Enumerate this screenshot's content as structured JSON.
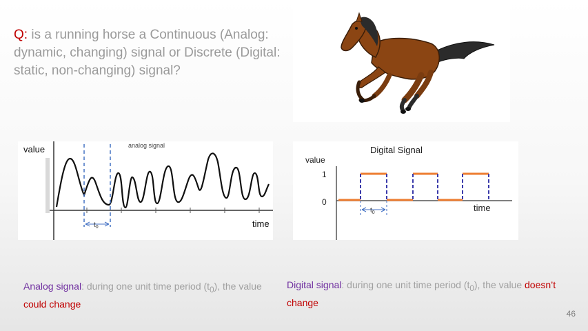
{
  "question": {
    "prefix": "Q:",
    "text": " is a running horse a Continuous (Analog: dynamic, changing) signal or Discrete (Digital: static, non-changing) signal?"
  },
  "analog_figure": {
    "value_label": "value",
    "title": "analog signal",
    "time_label": "time",
    "t0_label": "t",
    "t0_sub": "0"
  },
  "digital_figure": {
    "title": "Digital Signal",
    "value_label": "value",
    "tick_1": "1",
    "tick_0": "0",
    "time_label": "time",
    "t0_label": "t",
    "t0_sub": "0"
  },
  "captions": {
    "analog": {
      "lead": "Analog signal",
      "mid": ": during one unit time period (t",
      "sub": "0",
      "tail": "), the value ",
      "emph": "could change"
    },
    "digital": {
      "lead": "Digital signal",
      "mid": ": during one unit time period (t",
      "sub": "0",
      "tail": "), the value ",
      "emph": "doesn’t change"
    }
  },
  "page_number": "46",
  "colors": {
    "question_prefix": "#c00000",
    "body_text": "#9a9a9a",
    "purple": "#7030a0",
    "red": "#c00000",
    "dash_blue": "#4472c4",
    "orange": "#ed7d31",
    "horse_brown": "#8b4513"
  }
}
